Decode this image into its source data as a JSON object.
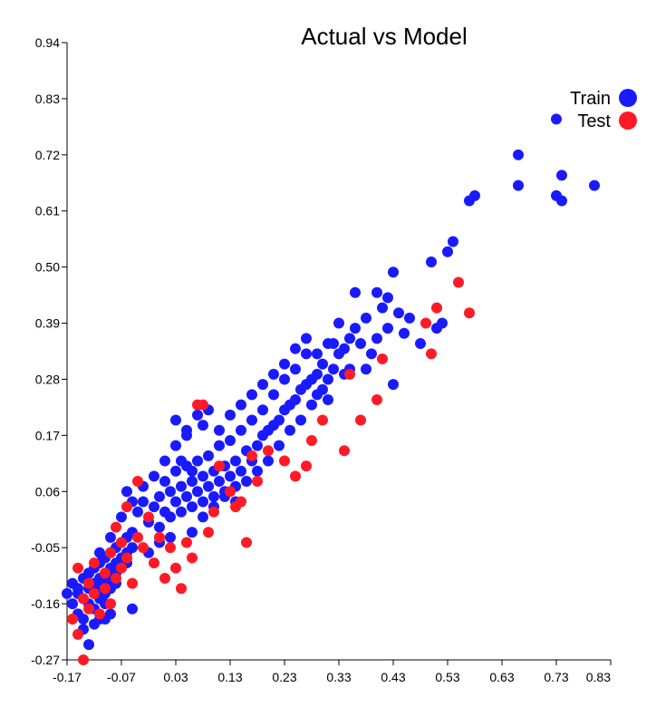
{
  "chart_data": {
    "type": "scatter",
    "title": "Actual vs Model",
    "xlabel": "",
    "ylabel": "",
    "xlim": [
      -0.17,
      0.83
    ],
    "ylim": [
      -0.27,
      0.94
    ],
    "x_ticks": [
      "-0.17",
      "-0.07",
      "0.03",
      "0.13",
      "0.23",
      "0.33",
      "0.43",
      "0.53",
      "0.63",
      "0.73",
      "0.83"
    ],
    "y_ticks": [
      "-0.27",
      "-0.16",
      "-0.05",
      "0.06",
      "0.17",
      "0.28",
      "0.39",
      "0.50",
      "0.61",
      "0.72",
      "0.83",
      "0.94"
    ],
    "grid": false,
    "legend_position": "top-right",
    "series": [
      {
        "name": "Train",
        "color": "#1a1aff",
        "points": [
          [
            -0.17,
            -0.14
          ],
          [
            -0.16,
            -0.12
          ],
          [
            -0.16,
            -0.16
          ],
          [
            -0.15,
            -0.13
          ],
          [
            -0.15,
            -0.18
          ],
          [
            -0.14,
            -0.11
          ],
          [
            -0.14,
            -0.15
          ],
          [
            -0.14,
            -0.19
          ],
          [
            -0.13,
            -0.1
          ],
          [
            -0.13,
            -0.13
          ],
          [
            -0.13,
            -0.16
          ],
          [
            -0.13,
            -0.24
          ],
          [
            -0.12,
            -0.09
          ],
          [
            -0.12,
            -0.12
          ],
          [
            -0.12,
            -0.14
          ],
          [
            -0.12,
            -0.17
          ],
          [
            -0.11,
            -0.08
          ],
          [
            -0.11,
            -0.11
          ],
          [
            -0.11,
            -0.13
          ],
          [
            -0.11,
            -0.15
          ],
          [
            -0.11,
            -0.19
          ],
          [
            -0.1,
            -0.07
          ],
          [
            -0.1,
            -0.1
          ],
          [
            -0.1,
            -0.12
          ],
          [
            -0.1,
            -0.14
          ],
          [
            -0.1,
            -0.16
          ],
          [
            -0.09,
            -0.06
          ],
          [
            -0.09,
            -0.09
          ],
          [
            -0.09,
            -0.11
          ],
          [
            -0.09,
            -0.13
          ],
          [
            -0.08,
            -0.05
          ],
          [
            -0.08,
            -0.08
          ],
          [
            -0.08,
            -0.1
          ],
          [
            -0.08,
            -0.12
          ],
          [
            -0.07,
            -0.04
          ],
          [
            -0.07,
            -0.07
          ],
          [
            -0.07,
            -0.09
          ],
          [
            -0.06,
            -0.03
          ],
          [
            -0.06,
            -0.06
          ],
          [
            -0.06,
            -0.08
          ],
          [
            -0.05,
            -0.05
          ],
          [
            -0.05,
            -0.02
          ],
          [
            -0.05,
            -0.17
          ],
          [
            -0.06,
            0.06
          ],
          [
            -0.04,
            0.02
          ],
          [
            -0.03,
            0.04
          ],
          [
            -0.02,
            0.0
          ],
          [
            -0.01,
            0.03
          ],
          [
            0.0,
            0.05
          ],
          [
            0.0,
            -0.01
          ],
          [
            0.01,
            0.08
          ],
          [
            0.01,
            0.02
          ],
          [
            0.02,
            0.06
          ],
          [
            0.02,
            0.01
          ],
          [
            0.03,
            0.04
          ],
          [
            0.03,
            0.1
          ],
          [
            0.04,
            0.07
          ],
          [
            0.04,
            0.02
          ],
          [
            0.05,
            0.05
          ],
          [
            0.05,
            0.11
          ],
          [
            0.06,
            0.08
          ],
          [
            0.06,
            0.03
          ],
          [
            0.07,
            0.06
          ],
          [
            0.07,
            0.12
          ],
          [
            0.08,
            0.09
          ],
          [
            0.08,
            0.04
          ],
          [
            0.09,
            0.07
          ],
          [
            0.09,
            0.13
          ],
          [
            0.1,
            0.1
          ],
          [
            0.1,
            0.05
          ],
          [
            0.11,
            0.08
          ],
          [
            0.11,
            0.15
          ],
          [
            0.12,
            0.11
          ],
          [
            0.12,
            0.06
          ],
          [
            0.13,
            0.09
          ],
          [
            0.13,
            0.16
          ],
          [
            0.14,
            0.12
          ],
          [
            0.14,
            0.07
          ],
          [
            0.15,
            0.1
          ],
          [
            0.15,
            0.18
          ],
          [
            0.16,
            0.14
          ],
          [
            0.16,
            0.08
          ],
          [
            0.17,
            0.12
          ],
          [
            0.17,
            0.2
          ],
          [
            0.18,
            0.15
          ],
          [
            0.18,
            0.1
          ],
          [
            0.19,
            0.17
          ],
          [
            0.19,
            0.22
          ],
          [
            0.2,
            0.18
          ],
          [
            0.2,
            0.12
          ],
          [
            0.21,
            0.19
          ],
          [
            0.21,
            0.25
          ],
          [
            0.22,
            0.2
          ],
          [
            0.22,
            0.15
          ],
          [
            0.23,
            0.22
          ],
          [
            0.23,
            0.28
          ],
          [
            0.24,
            0.23
          ],
          [
            0.24,
            0.18
          ],
          [
            0.25,
            0.24
          ],
          [
            0.25,
            0.3
          ],
          [
            0.26,
            0.26
          ],
          [
            0.26,
            0.2
          ],
          [
            0.27,
            0.27
          ],
          [
            0.27,
            0.33
          ],
          [
            0.28,
            0.28
          ],
          [
            0.28,
            0.23
          ],
          [
            0.29,
            0.29
          ],
          [
            0.29,
            0.25
          ],
          [
            0.3,
            0.31
          ],
          [
            0.3,
            0.26
          ],
          [
            0.31,
            0.24
          ],
          [
            0.31,
            0.28
          ],
          [
            0.32,
            0.3
          ],
          [
            0.32,
            0.35
          ],
          [
            0.33,
            0.33
          ],
          [
            0.33,
            0.39
          ],
          [
            0.34,
            0.34
          ],
          [
            0.34,
            0.29
          ],
          [
            0.35,
            0.36
          ],
          [
            0.35,
            0.3
          ],
          [
            0.36,
            0.38
          ],
          [
            0.36,
            0.45
          ],
          [
            0.37,
            0.35
          ],
          [
            0.38,
            0.4
          ],
          [
            0.38,
            0.3
          ],
          [
            0.39,
            0.33
          ],
          [
            0.4,
            0.36
          ],
          [
            0.4,
            0.45
          ],
          [
            0.41,
            0.42
          ],
          [
            0.42,
            0.38
          ],
          [
            0.42,
            0.44
          ],
          [
            0.43,
            0.27
          ],
          [
            0.43,
            0.49
          ],
          [
            0.44,
            0.41
          ],
          [
            0.45,
            0.37
          ],
          [
            0.46,
            0.4
          ],
          [
            0.48,
            0.35
          ],
          [
            0.5,
            0.51
          ],
          [
            0.51,
            0.38
          ],
          [
            0.52,
            0.39
          ],
          [
            0.53,
            0.53
          ],
          [
            0.54,
            0.55
          ],
          [
            0.57,
            0.63
          ],
          [
            0.58,
            0.64
          ],
          [
            0.66,
            0.72
          ],
          [
            0.66,
            0.66
          ],
          [
            0.73,
            0.64
          ],
          [
            0.73,
            0.79
          ],
          [
            0.74,
            0.68
          ],
          [
            0.74,
            0.63
          ],
          [
            0.8,
            0.66
          ],
          [
            0.03,
            0.2
          ],
          [
            0.05,
            0.17
          ],
          [
            0.07,
            0.21
          ],
          [
            0.08,
            0.19
          ],
          [
            0.09,
            0.22
          ],
          [
            0.11,
            0.18
          ],
          [
            0.13,
            0.21
          ],
          [
            0.15,
            0.23
          ],
          [
            0.17,
            0.25
          ],
          [
            0.19,
            0.27
          ],
          [
            0.21,
            0.29
          ],
          [
            0.23,
            0.31
          ],
          [
            0.25,
            0.34
          ],
          [
            0.27,
            0.36
          ],
          [
            0.29,
            0.33
          ],
          [
            0.31,
            0.35
          ],
          [
            -0.09,
            -0.18
          ],
          [
            -0.14,
            -0.21
          ],
          [
            -0.12,
            -0.2
          ],
          [
            -0.1,
            -0.19
          ],
          [
            -0.15,
            -0.14
          ],
          [
            -0.13,
            -0.1
          ],
          [
            -0.11,
            -0.06
          ],
          [
            -0.09,
            -0.03
          ],
          [
            -0.07,
            0.01
          ],
          [
            -0.05,
            0.04
          ],
          [
            -0.03,
            0.07
          ],
          [
            -0.01,
            0.09
          ],
          [
            0.01,
            0.12
          ],
          [
            0.03,
            0.15
          ],
          [
            0.05,
            0.18
          ],
          [
            0.04,
            0.12
          ],
          [
            0.06,
            0.1
          ],
          [
            0.02,
            -0.03
          ],
          [
            0.0,
            -0.04
          ],
          [
            -0.02,
            -0.06
          ],
          [
            0.06,
            -0.02
          ],
          [
            0.08,
            0.01
          ],
          [
            0.1,
            0.03
          ],
          [
            0.12,
            0.05
          ],
          [
            0.14,
            0.04
          ]
        ]
      },
      {
        "name": "Test",
        "color": "#ff1a26",
        "points": [
          [
            -0.16,
            -0.19
          ],
          [
            -0.15,
            -0.09
          ],
          [
            -0.15,
            -0.22
          ],
          [
            -0.14,
            -0.15
          ],
          [
            -0.14,
            -0.27
          ],
          [
            -0.13,
            -0.12
          ],
          [
            -0.13,
            -0.17
          ],
          [
            -0.12,
            -0.08
          ],
          [
            -0.12,
            -0.14
          ],
          [
            -0.11,
            -0.18
          ],
          [
            -0.1,
            -0.1
          ],
          [
            -0.1,
            -0.13
          ],
          [
            -0.09,
            -0.06
          ],
          [
            -0.09,
            -0.16
          ],
          [
            -0.08,
            -0.11
          ],
          [
            -0.08,
            -0.01
          ],
          [
            -0.07,
            -0.04
          ],
          [
            -0.07,
            -0.09
          ],
          [
            -0.06,
            0.03
          ],
          [
            -0.06,
            -0.07
          ],
          [
            -0.05,
            -0.12
          ],
          [
            -0.04,
            0.08
          ],
          [
            -0.04,
            -0.03
          ],
          [
            -0.03,
            -0.05
          ],
          [
            -0.02,
            0.01
          ],
          [
            -0.01,
            -0.08
          ],
          [
            0.0,
            -0.03
          ],
          [
            0.01,
            -0.11
          ],
          [
            0.02,
            -0.05
          ],
          [
            0.03,
            -0.09
          ],
          [
            0.04,
            -0.13
          ],
          [
            0.05,
            -0.04
          ],
          [
            0.06,
            -0.07
          ],
          [
            0.07,
            0.23
          ],
          [
            0.08,
            0.23
          ],
          [
            0.09,
            -0.02
          ],
          [
            0.1,
            0.02
          ],
          [
            0.11,
            0.11
          ],
          [
            0.13,
            0.06
          ],
          [
            0.14,
            0.03
          ],
          [
            0.15,
            0.04
          ],
          [
            0.16,
            -0.04
          ],
          [
            0.17,
            0.13
          ],
          [
            0.18,
            0.08
          ],
          [
            0.2,
            0.14
          ],
          [
            0.23,
            0.12
          ],
          [
            0.25,
            0.09
          ],
          [
            0.27,
            0.11
          ],
          [
            0.28,
            0.16
          ],
          [
            0.3,
            0.2
          ],
          [
            0.34,
            0.14
          ],
          [
            0.35,
            0.29
          ],
          [
            0.37,
            0.2
          ],
          [
            0.4,
            0.24
          ],
          [
            0.41,
            0.32
          ],
          [
            0.49,
            0.39
          ],
          [
            0.5,
            0.33
          ],
          [
            0.51,
            0.42
          ],
          [
            0.55,
            0.47
          ],
          [
            0.57,
            0.41
          ]
        ]
      }
    ]
  }
}
